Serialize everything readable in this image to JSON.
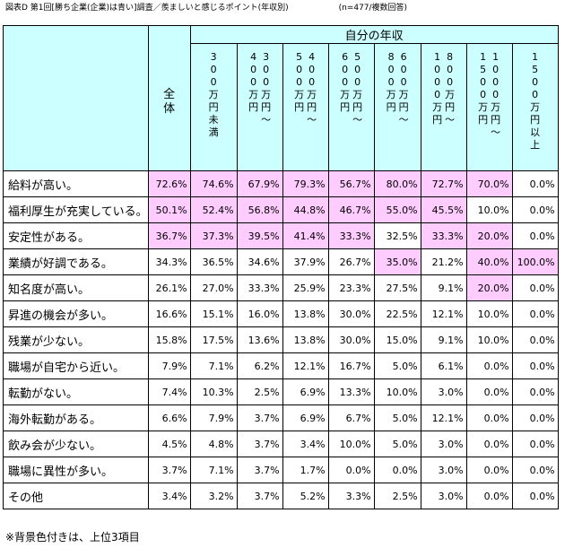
{
  "title": {
    "main": "図表D 第1回[勝ち企業(企業)は青い]調査／羨ましいと感じるポイント(年収別)",
    "n": "(n=477/複数回答)"
  },
  "header": {
    "band": "自分の年収",
    "total": "全体",
    "columns": [
      {
        "cols": [
          "300万円未満"
        ]
      },
      {
        "cols": [
          "300万円〜",
          "400万円"
        ]
      },
      {
        "cols": [
          "400万円〜",
          "500万円"
        ]
      },
      {
        "cols": [
          "500万円〜",
          "600万円"
        ]
      },
      {
        "cols": [
          "600万円〜",
          "800万円"
        ]
      },
      {
        "cols": [
          "800万円〜",
          "1000万円"
        ]
      },
      {
        "cols": [
          "1000万円〜",
          "1500万円"
        ]
      },
      {
        "cols": [
          "1500万円以上"
        ]
      }
    ]
  },
  "rows": [
    {
      "label": "給料が高い。",
      "values": [
        "72.6%",
        "74.6%",
        "67.9%",
        "79.3%",
        "56.7%",
        "80.0%",
        "72.7%",
        "70.0%",
        "0.0%"
      ],
      "highlight": [
        true,
        true,
        true,
        true,
        true,
        true,
        true,
        true,
        false
      ]
    },
    {
      "label": "福利厚生が充実している。",
      "values": [
        "50.1%",
        "52.4%",
        "56.8%",
        "44.8%",
        "46.7%",
        "55.0%",
        "45.5%",
        "10.0%",
        "0.0%"
      ],
      "highlight": [
        true,
        true,
        true,
        true,
        true,
        true,
        true,
        false,
        false
      ]
    },
    {
      "label": "安定性がある。",
      "values": [
        "36.7%",
        "37.3%",
        "39.5%",
        "41.4%",
        "33.3%",
        "32.5%",
        "33.3%",
        "20.0%",
        "0.0%"
      ],
      "highlight": [
        true,
        true,
        true,
        true,
        true,
        false,
        true,
        true,
        false
      ]
    },
    {
      "label": "業績が好調である。",
      "values": [
        "34.3%",
        "36.5%",
        "34.6%",
        "37.9%",
        "26.7%",
        "35.0%",
        "21.2%",
        "40.0%",
        "100.0%"
      ],
      "highlight": [
        false,
        false,
        false,
        false,
        false,
        true,
        false,
        true,
        true
      ]
    },
    {
      "label": "知名度が高い。",
      "values": [
        "26.1%",
        "27.0%",
        "33.3%",
        "25.9%",
        "23.3%",
        "27.5%",
        "9.1%",
        "20.0%",
        "0.0%"
      ],
      "highlight": [
        false,
        false,
        false,
        false,
        false,
        false,
        false,
        true,
        false
      ]
    },
    {
      "label": "昇進の機会が多い。",
      "values": [
        "16.6%",
        "15.1%",
        "16.0%",
        "13.8%",
        "30.0%",
        "22.5%",
        "12.1%",
        "10.0%",
        "0.0%"
      ],
      "highlight": [
        false,
        false,
        false,
        false,
        false,
        false,
        false,
        false,
        false
      ]
    },
    {
      "label": "残業が少ない。",
      "values": [
        "15.8%",
        "17.5%",
        "13.6%",
        "13.8%",
        "30.0%",
        "15.0%",
        "9.1%",
        "10.0%",
        "0.0%"
      ],
      "highlight": [
        false,
        false,
        false,
        false,
        false,
        false,
        false,
        false,
        false
      ]
    },
    {
      "label": "職場が自宅から近い。",
      "values": [
        "7.9%",
        "7.1%",
        "6.2%",
        "12.1%",
        "16.7%",
        "5.0%",
        "6.1%",
        "0.0%",
        "0.0%"
      ],
      "highlight": [
        false,
        false,
        false,
        false,
        false,
        false,
        false,
        false,
        false
      ]
    },
    {
      "label": "転勤がない。",
      "values": [
        "7.4%",
        "10.3%",
        "2.5%",
        "6.9%",
        "13.3%",
        "10.0%",
        "3.0%",
        "0.0%",
        "0.0%"
      ],
      "highlight": [
        false,
        false,
        false,
        false,
        false,
        false,
        false,
        false,
        false
      ]
    },
    {
      "label": "海外転勤がある。",
      "values": [
        "6.6%",
        "7.9%",
        "3.7%",
        "6.9%",
        "6.7%",
        "5.0%",
        "12.1%",
        "0.0%",
        "0.0%"
      ],
      "highlight": [
        false,
        false,
        false,
        false,
        false,
        false,
        false,
        false,
        false
      ]
    },
    {
      "label": "飲み会が少ない。",
      "values": [
        "4.5%",
        "4.8%",
        "3.7%",
        "3.4%",
        "10.0%",
        "5.0%",
        "3.0%",
        "0.0%",
        "0.0%"
      ],
      "highlight": [
        false,
        false,
        false,
        false,
        false,
        false,
        false,
        false,
        false
      ]
    },
    {
      "label": "職場に異性が多い。",
      "values": [
        "3.7%",
        "7.1%",
        "3.7%",
        "1.7%",
        "0.0%",
        "0.0%",
        "3.0%",
        "0.0%",
        "0.0%"
      ],
      "highlight": [
        false,
        false,
        false,
        false,
        false,
        false,
        false,
        false,
        false
      ]
    },
    {
      "label": "その他",
      "values": [
        "3.4%",
        "3.2%",
        "3.7%",
        "5.2%",
        "3.3%",
        "2.5%",
        "3.0%",
        "0.0%",
        "0.0%"
      ],
      "highlight": [
        false,
        false,
        false,
        false,
        false,
        false,
        false,
        false,
        false
      ]
    }
  ],
  "footnote": "※背景色付きは、上位3項目",
  "colors": {
    "highlight": "#ffccff",
    "header": "#ccffff",
    "border": "#000000"
  }
}
